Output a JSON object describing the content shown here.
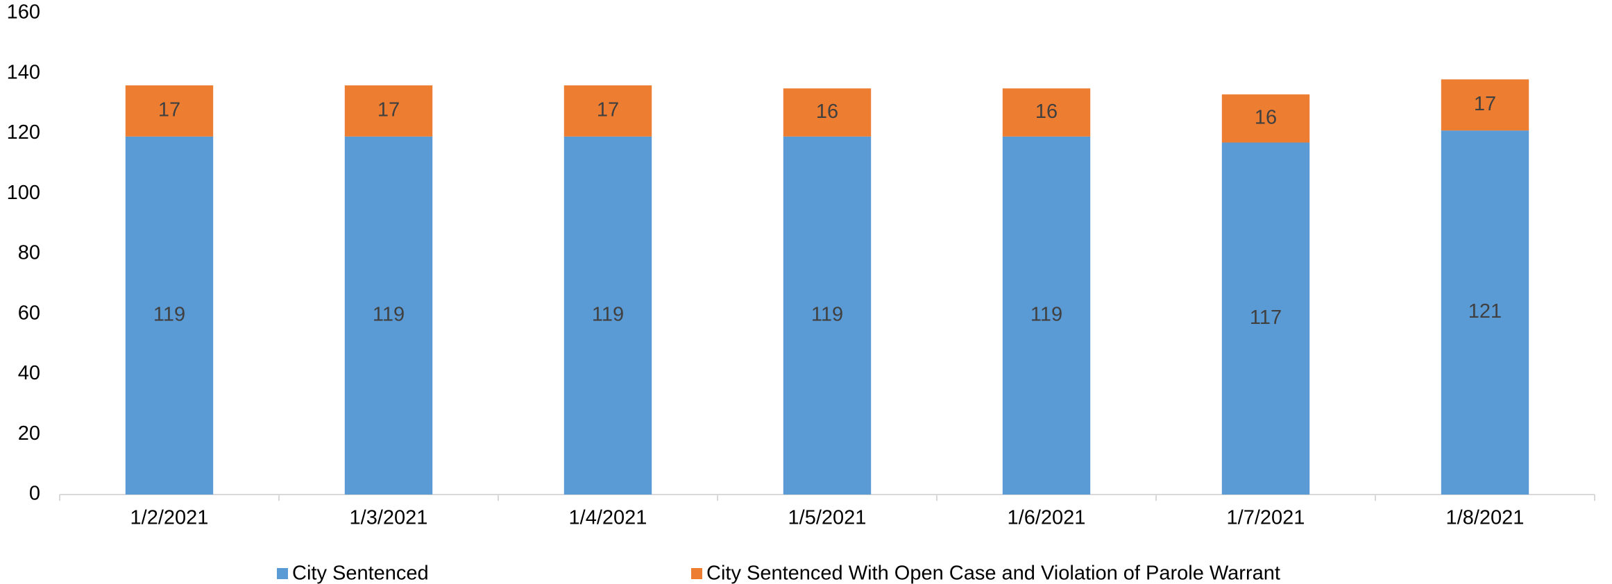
{
  "chart_data": {
    "type": "stacked_bar",
    "categories": [
      "1/2/2021",
      "1/3/2021",
      "1/4/2021",
      "1/5/2021",
      "1/6/2021",
      "1/7/2021",
      "1/8/2021"
    ],
    "series": [
      {
        "name": "City Sentenced",
        "color": "#5b9bd5",
        "values": [
          119,
          119,
          119,
          119,
          119,
          117,
          121
        ]
      },
      {
        "name": "City Sentenced With Open Case and Violation of Parole Warrant",
        "color": "#ed7d31",
        "values": [
          17,
          17,
          17,
          16,
          16,
          16,
          17
        ]
      }
    ],
    "ylim": [
      0,
      160
    ],
    "yticks": [
      0,
      20,
      40,
      60,
      80,
      100,
      120,
      140,
      160
    ],
    "grid": false,
    "legend": "bottom"
  }
}
